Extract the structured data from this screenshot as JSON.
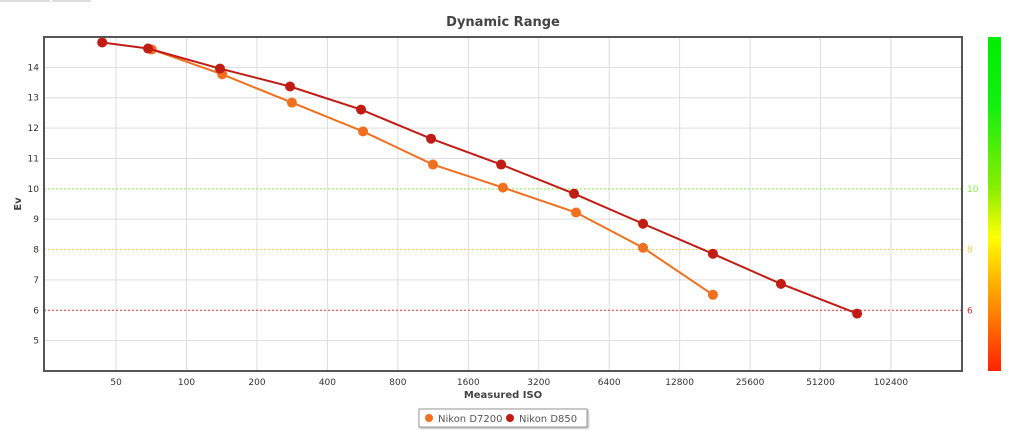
{
  "chart_data": {
    "type": "line",
    "title": "Dynamic Range",
    "xlabel": "Measured ISO",
    "ylabel": "Ev",
    "x_scale": "log2",
    "xlim": [
      24.6,
      206000
    ],
    "ylim": [
      4,
      15
    ],
    "x_ticks": [
      50,
      100,
      200,
      400,
      800,
      1600,
      3200,
      6400,
      12800,
      25600,
      51200,
      102400
    ],
    "x_tick_labels": [
      "50",
      "100",
      "200",
      "400",
      "800",
      "1600",
      "3200",
      "6400",
      "12800",
      "25600",
      "51200",
      "102400"
    ],
    "y_ticks": [
      5,
      6,
      7,
      8,
      9,
      10,
      11,
      12,
      13,
      14
    ],
    "y_tick_labels": [
      "5",
      "6",
      "7",
      "8",
      "9",
      "10",
      "11",
      "12",
      "13",
      "14"
    ],
    "grid": true,
    "reference_lines": [
      {
        "value": 10,
        "label": "10",
        "color": "#88ee44"
      },
      {
        "value": 8,
        "label": "8",
        "color": "#ffcc55"
      },
      {
        "value": 6,
        "label": "6",
        "color": "#e03030"
      }
    ],
    "legend_position": "bottom-center",
    "series": [
      {
        "name": "Nikon D7200",
        "color": "#f07020",
        "x": [
          71,
          142,
          282,
          568,
          1130,
          2250,
          4620,
          8930,
          17760
        ],
        "y": [
          14.59,
          13.77,
          12.84,
          11.89,
          10.8,
          10.04,
          9.22,
          8.06,
          6.51
        ]
      },
      {
        "name": "Nikon D850",
        "color": "#c01c14",
        "x": [
          43.6,
          68.5,
          139,
          277,
          557,
          1109,
          2210,
          4530,
          8930,
          17760,
          34700,
          73400
        ],
        "y": [
          14.82,
          14.62,
          13.96,
          13.37,
          12.61,
          11.65,
          10.8,
          9.84,
          8.85,
          7.86,
          6.87,
          5.89
        ]
      }
    ]
  }
}
